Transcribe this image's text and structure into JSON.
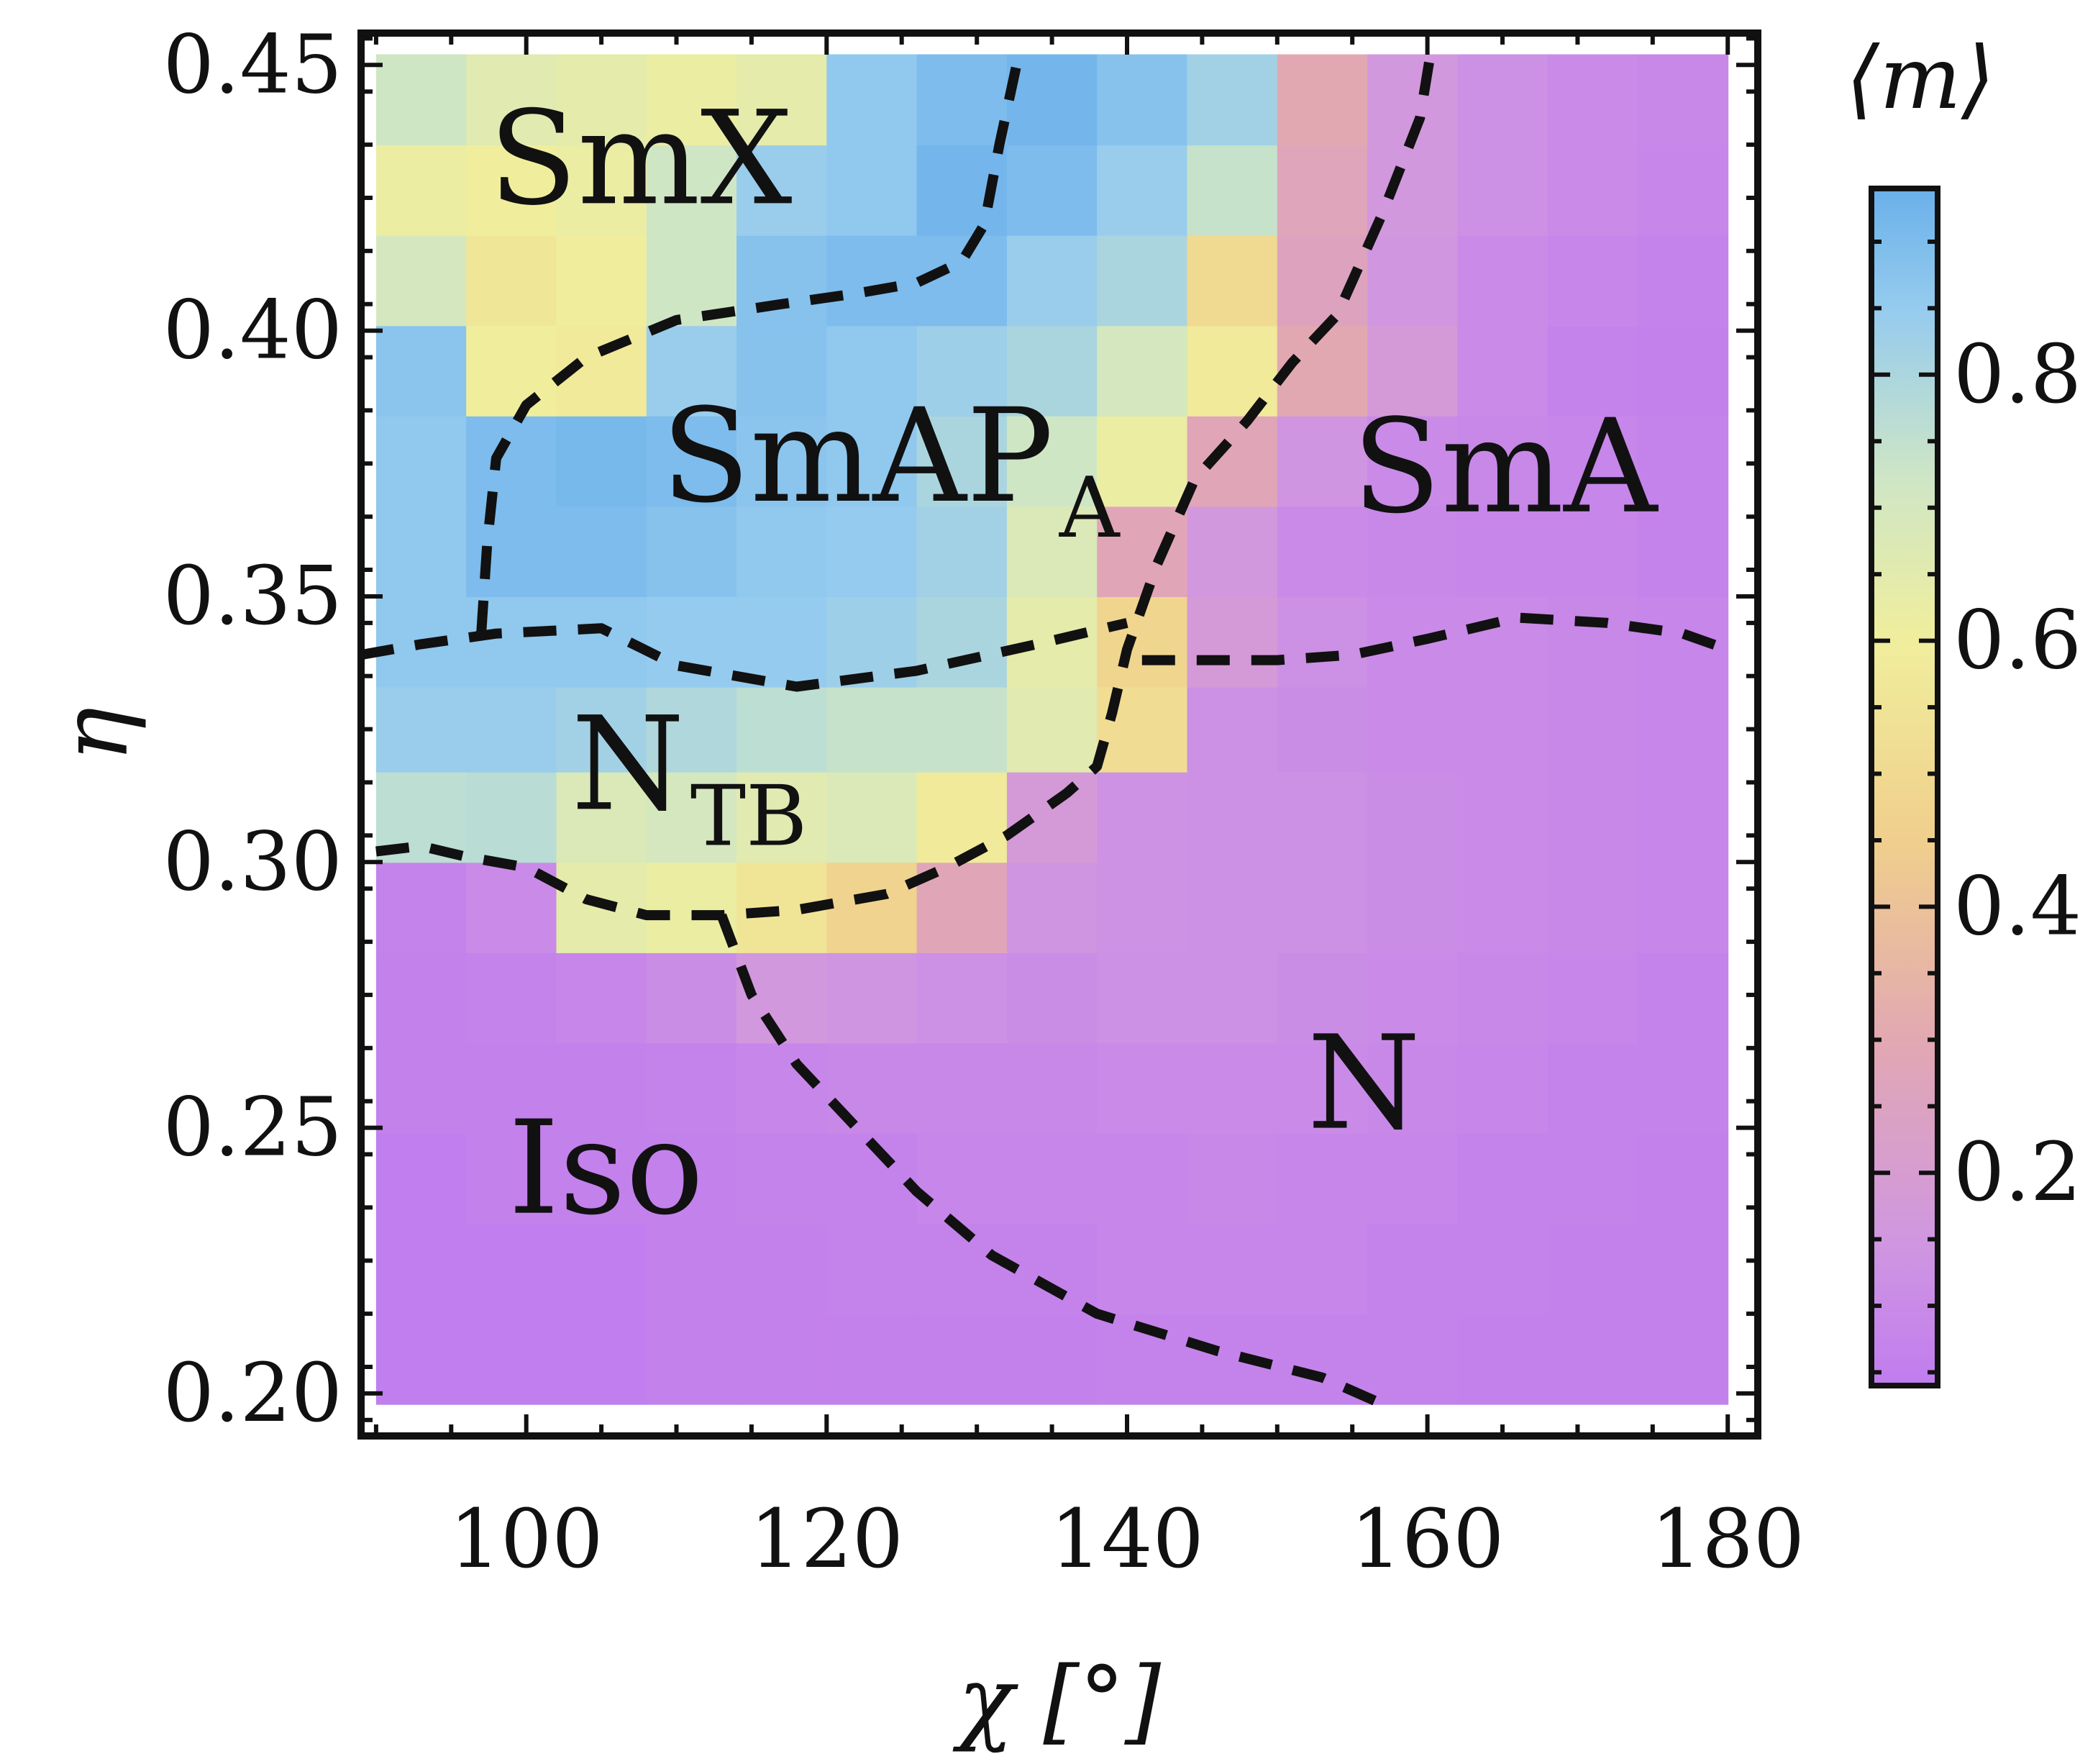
{
  "chart_data": {
    "type": "heatmap",
    "title": "",
    "xlabel": "χ [°]",
    "ylabel": "η",
    "xlim": [
      89,
      182
    ],
    "ylim": [
      0.192,
      0.456
    ],
    "x_ticks": [
      "100",
      "120",
      "140",
      "160",
      "180"
    ],
    "x_tick_values": [
      100,
      120,
      140,
      160,
      180
    ],
    "y_ticks": [
      "0.20",
      "0.25",
      "0.30",
      "0.35",
      "0.40",
      "0.45"
    ],
    "y_tick_values": [
      0.2,
      0.25,
      0.3,
      0.35,
      0.4,
      0.45
    ],
    "grid": false,
    "colorbar": {
      "label": "⟨m⟩",
      "range": [
        0.04,
        0.94
      ],
      "ticks": [
        "0.2",
        "0.4",
        "0.6",
        "0.8"
      ],
      "tick_values": [
        0.2,
        0.4,
        0.6,
        0.8
      ],
      "stops": [
        {
          "value": 0.04,
          "color": "#c07cef"
        },
        {
          "value": 0.15,
          "color": "#d097e0"
        },
        {
          "value": 0.3,
          "color": "#e2a8b2"
        },
        {
          "value": 0.45,
          "color": "#f0cf8c"
        },
        {
          "value": 0.6,
          "color": "#f0ee9c"
        },
        {
          "value": 0.72,
          "color": "#cfe6c5"
        },
        {
          "value": 0.85,
          "color": "#95cbee"
        },
        {
          "value": 0.94,
          "color": "#6ab0ea"
        }
      ]
    },
    "grid_x_edges": [
      90,
      96,
      102,
      108,
      114,
      120,
      126,
      132,
      138,
      144,
      150,
      156,
      162,
      168,
      174,
      180
    ],
    "grid_y_edges": [
      0.198,
      0.215,
      0.232,
      0.249,
      0.266,
      0.283,
      0.3,
      0.317,
      0.333,
      0.35,
      0.367,
      0.384,
      0.401,
      0.418,
      0.435,
      0.452
    ],
    "values": [
      [
        0.05,
        0.05,
        0.05,
        0.06,
        0.06,
        0.06,
        0.06,
        0.06,
        0.07,
        0.07,
        0.07,
        0.07,
        0.06,
        0.06,
        0.06
      ],
      [
        0.05,
        0.05,
        0.05,
        0.06,
        0.06,
        0.07,
        0.07,
        0.07,
        0.08,
        0.08,
        0.08,
        0.07,
        0.07,
        0.06,
        0.06
      ],
      [
        0.05,
        0.06,
        0.06,
        0.06,
        0.07,
        0.07,
        0.08,
        0.08,
        0.08,
        0.09,
        0.08,
        0.08,
        0.07,
        0.07,
        0.06
      ],
      [
        0.06,
        0.06,
        0.06,
        0.07,
        0.08,
        0.09,
        0.09,
        0.09,
        0.1,
        0.1,
        0.1,
        0.09,
        0.08,
        0.07,
        0.07
      ],
      [
        0.06,
        0.07,
        0.08,
        0.11,
        0.16,
        0.14,
        0.12,
        0.11,
        0.12,
        0.12,
        0.11,
        0.1,
        0.09,
        0.08,
        0.07
      ],
      [
        0.07,
        0.1,
        0.64,
        0.62,
        0.55,
        0.47,
        0.28,
        0.14,
        0.13,
        0.12,
        0.12,
        0.11,
        0.1,
        0.09,
        0.08
      ],
      [
        0.76,
        0.77,
        0.68,
        0.7,
        0.66,
        0.68,
        0.58,
        0.18,
        0.13,
        0.12,
        0.12,
        0.11,
        0.1,
        0.09,
        0.08
      ],
      [
        0.84,
        0.84,
        0.82,
        0.79,
        0.76,
        0.74,
        0.74,
        0.66,
        0.52,
        0.12,
        0.11,
        0.1,
        0.1,
        0.09,
        0.08
      ],
      [
        0.86,
        0.86,
        0.86,
        0.85,
        0.85,
        0.83,
        0.8,
        0.64,
        0.48,
        0.18,
        0.12,
        0.1,
        0.1,
        0.09,
        0.08
      ],
      [
        0.86,
        0.9,
        0.9,
        0.88,
        0.86,
        0.85,
        0.82,
        0.68,
        0.28,
        0.16,
        0.1,
        0.09,
        0.08,
        0.08,
        0.07
      ],
      [
        0.86,
        0.9,
        0.91,
        0.9,
        0.87,
        0.86,
        0.8,
        0.72,
        0.62,
        0.28,
        0.14,
        0.1,
        0.09,
        0.08,
        0.07
      ],
      [
        0.87,
        0.6,
        0.58,
        0.84,
        0.88,
        0.86,
        0.83,
        0.8,
        0.7,
        0.58,
        0.3,
        0.18,
        0.1,
        0.07,
        0.06
      ],
      [
        0.7,
        0.56,
        0.6,
        0.72,
        0.88,
        0.9,
        0.9,
        0.84,
        0.8,
        0.5,
        0.26,
        0.15,
        0.1,
        0.08,
        0.07
      ],
      [
        0.62,
        0.6,
        0.62,
        0.72,
        0.84,
        0.86,
        0.92,
        0.9,
        0.84,
        0.74,
        0.27,
        0.16,
        0.12,
        0.1,
        0.08
      ],
      [
        0.72,
        0.66,
        0.64,
        0.62,
        0.64,
        0.86,
        0.9,
        0.92,
        0.88,
        0.82,
        0.3,
        0.16,
        0.12,
        0.1,
        0.09
      ]
    ],
    "phase_labels": [
      {
        "text": "SmX",
        "sub": "",
        "x": 97.5,
        "y": 0.424
      },
      {
        "text": "SmAP",
        "sub": "A",
        "x": 109,
        "y": 0.368
      },
      {
        "text": "SmA",
        "sub": "",
        "x": 155,
        "y": 0.366
      },
      {
        "text": "N",
        "sub": "TB",
        "x": 103,
        "y": 0.31
      },
      {
        "text": "N",
        "sub": "",
        "x": 152,
        "y": 0.25
      },
      {
        "text": "Iso",
        "sub": "",
        "x": 98.8,
        "y": 0.234
      }
    ],
    "boundaries": [
      [
        [
          89,
          0.339
        ],
        [
          93,
          0.341
        ],
        [
          98,
          0.343
        ],
        [
          105,
          0.344
        ],
        [
          110,
          0.337
        ],
        [
          118,
          0.333
        ],
        [
          126,
          0.336
        ],
        [
          134,
          0.341
        ],
        [
          140,
          0.345
        ]
      ],
      [
        [
          97,
          0.343
        ],
        [
          97.4,
          0.36
        ],
        [
          98,
          0.376
        ],
        [
          100,
          0.386
        ],
        [
          104,
          0.395
        ],
        [
          110,
          0.402
        ],
        [
          117,
          0.405
        ],
        [
          122,
          0.407
        ],
        [
          126,
          0.409
        ],
        [
          129,
          0.413
        ],
        [
          130.5,
          0.42
        ],
        [
          131.5,
          0.435
        ],
        [
          132.8,
          0.452
        ]
      ],
      [
        [
          90,
          0.302
        ],
        [
          93,
          0.303
        ],
        [
          96,
          0.301
        ],
        [
          100,
          0.299
        ],
        [
          104,
          0.293
        ],
        [
          108,
          0.29
        ],
        [
          113,
          0.29
        ],
        [
          118,
          0.291
        ],
        [
          124,
          0.294
        ],
        [
          128,
          0.299
        ],
        [
          132,
          0.305
        ],
        [
          136,
          0.313
        ],
        [
          138,
          0.318
        ],
        [
          139,
          0.328
        ],
        [
          140,
          0.34
        ],
        [
          142,
          0.356
        ],
        [
          144.5,
          0.372
        ],
        [
          148,
          0.383
        ],
        [
          151,
          0.394
        ],
        [
          154,
          0.403
        ],
        [
          157,
          0.422
        ],
        [
          159.5,
          0.44
        ],
        [
          160.2,
          0.452
        ]
      ],
      [
        [
          141,
          0.338
        ],
        [
          145,
          0.338
        ],
        [
          150,
          0.338
        ],
        [
          155,
          0.339
        ],
        [
          160,
          0.342
        ],
        [
          166,
          0.346
        ],
        [
          172,
          0.345
        ],
        [
          177,
          0.343
        ],
        [
          180,
          0.34
        ]
      ],
      [
        [
          113,
          0.29
        ],
        [
          115,
          0.275
        ],
        [
          118,
          0.262
        ],
        [
          122,
          0.25
        ],
        [
          126,
          0.238
        ],
        [
          131,
          0.226
        ],
        [
          138,
          0.215
        ],
        [
          146,
          0.208
        ],
        [
          153,
          0.203
        ],
        [
          157,
          0.198
        ]
      ]
    ]
  }
}
